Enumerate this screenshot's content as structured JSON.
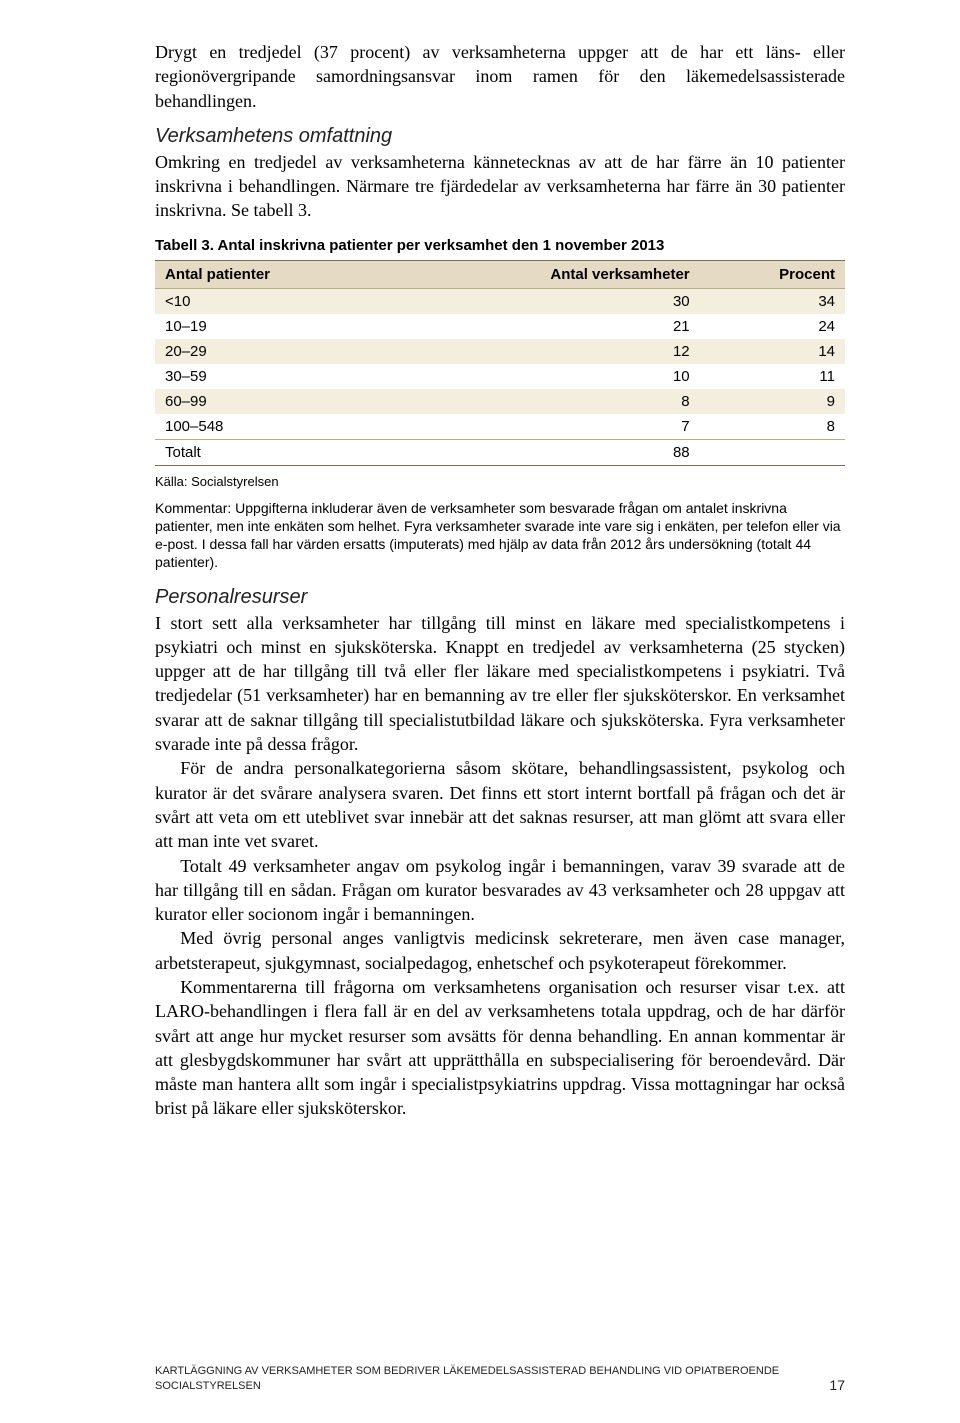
{
  "intro_para": "Drygt en tredjedel (37 procent) av verksamheterna uppger att de har ett läns- eller regionövergripande samordningsansvar inom ramen för den läkemedelsassisterade behandlingen.",
  "section1": {
    "heading": "Verksamhetens omfattning",
    "para": "Omkring en tredjedel av verksamheterna kännetecknas av att de har färre än 10 patienter inskrivna i behandlingen. Närmare tre fjärdedelar av verksamheterna har färre än 30 patienter inskrivna. Se tabell 3."
  },
  "table": {
    "caption": "Tabell 3. Antal inskrivna patienter per verksamhet den 1 november 2013",
    "columns": [
      "Antal patienter",
      "Antal verksamheter",
      "Procent"
    ],
    "rows": [
      [
        "<10",
        "30",
        "34"
      ],
      [
        "10–19",
        "21",
        "24"
      ],
      [
        "20–29",
        "12",
        "14"
      ],
      [
        "30–59",
        "10",
        "11"
      ],
      [
        "60–99",
        "8",
        "9"
      ],
      [
        "100–548",
        "7",
        "8"
      ]
    ],
    "total_row": [
      "Totalt",
      "88",
      ""
    ],
    "header_bg": "#e5dbc4",
    "row_odd_bg": "#f3eedd",
    "row_even_bg": "#ffffff",
    "border_color": "#7a6f55"
  },
  "source_line": "Källa: Socialstyrelsen",
  "comment_text": "Kommentar: Uppgifterna inkluderar även de verksamheter som besvarade frågan om antalet inskrivna patienter, men inte enkäten som helhet. Fyra verksamheter svarade inte vare sig i enkäten, per telefon eller via e-post. I dessa fall har värden ersatts (imputerats) med hjälp av data från 2012 års undersökning (totalt 44 patienter).",
  "section2": {
    "heading": "Personalresurser",
    "p1": "I stort sett alla verksamheter har tillgång till minst en läkare med specialistkompetens i psykiatri och minst en sjuksköterska. Knappt en tredjedel av verksamheterna (25 stycken) uppger att de har tillgång till två eller fler läkare med specialistkompetens i psykiatri. Två tredjedelar (51 verksamheter) har en bemanning av tre eller fler sjuksköterskor. En verksamhet svarar att de saknar tillgång till specialistutbildad läkare och sjuksköterska. Fyra verksamheter svarade inte på dessa frågor.",
    "p2": "För de andra personalkategorierna såsom skötare, behandlingsassistent, psykolog och kurator är det svårare analysera svaren. Det finns ett stort internt bortfall på frågan och det är svårt att veta om ett uteblivet svar innebär att det saknas resurser, att man glömt att svara eller att man inte vet svaret.",
    "p3": "Totalt 49 verksamheter angav om psykolog ingår i bemanningen, varav 39 svarade att de har tillgång till en sådan. Frågan om kurator besvarades av 43 verksamheter och 28 uppgav att kurator eller socionom ingår i bemanningen.",
    "p4": "Med övrig personal anges vanligtvis medicinsk sekreterare, men även case manager, arbetsterapeut, sjukgymnast, socialpedagog, enhetschef och psykoterapeut förekommer.",
    "p5": "Kommentarerna till frågorna om verksamhetens organisation och resurser visar t.ex. att LARO-behandlingen i flera fall är en del av verksamhetens totala uppdrag, och de har därför svårt att ange hur mycket resurser som avsätts för denna behandling. En annan kommentar är att glesbygdskommuner har svårt att upprätthålla en subspecialisering för beroendevård. Där måste man hantera allt som ingår i specialistpsykiatrins uppdrag. Vissa mottagningar har också brist på läkare eller sjuksköterskor."
  },
  "footer": {
    "line1": "KARTLÄGGNING AV VERKSAMHETER SOM BEDRIVER LÄKEMEDELSASSISTERAD BEHANDLING VID OPIATBEROENDE",
    "line2": "SOCIALSTYRELSEN",
    "page_number": "17"
  }
}
